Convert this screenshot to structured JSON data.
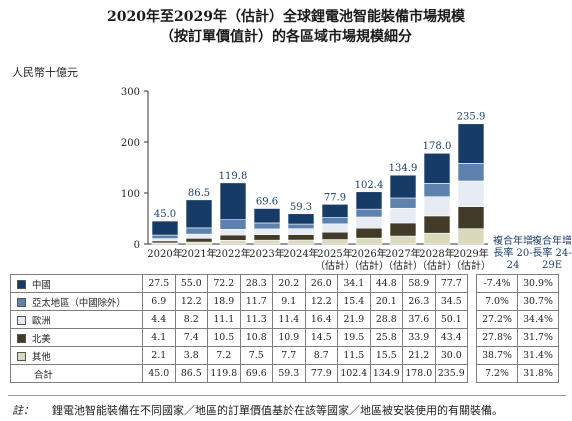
{
  "title_line1": "2020年至2029年（估計）全球鋰電池智能裝備市場規模",
  "title_line2": "（按訂單價值計）的各區域市場規模細分",
  "chart_data": {
    "type": "bar",
    "stacked": true,
    "ylabel": "人民幣十億元",
    "ylim": [
      0,
      300
    ],
    "yticks": [
      0,
      100,
      200,
      300
    ],
    "categories": [
      "2020年",
      "2021年",
      "2022年",
      "2023年",
      "2024年",
      "2025年\n（估計）",
      "2026年\n（估計）",
      "2027年\n（估計）",
      "2028年\n（估計）",
      "2029年\n（估計）"
    ],
    "series": [
      {
        "name": "中國",
        "color": "#163b66",
        "values": [
          27.5,
          55.0,
          72.2,
          28.3,
          20.2,
          26.0,
          34.1,
          44.8,
          58.9,
          77.7
        ],
        "cagr_2024": "-7.4%",
        "cagr_2429": "30.9%"
      },
      {
        "name": "亞太地區（中國除外）",
        "color": "#5c82ad",
        "values": [
          6.9,
          12.2,
          18.9,
          11.7,
          9.1,
          12.2,
          15.4,
          20.1,
          26.3,
          34.5
        ],
        "cagr_2024": "7.0%",
        "cagr_2429": "30.7%"
      },
      {
        "name": "歐洲",
        "color": "#e6ebf4",
        "values": [
          4.4,
          8.2,
          11.1,
          11.3,
          11.4,
          16.4,
          21.9,
          28.8,
          37.6,
          50.1
        ],
        "cagr_2024": "27.2%",
        "cagr_2429": "34.4%"
      },
      {
        "name": "北美",
        "color": "#413b27",
        "values": [
          4.1,
          7.4,
          10.5,
          10.8,
          10.9,
          14.5,
          19.5,
          25.8,
          33.9,
          43.4
        ],
        "cagr_2024": "27.8%",
        "cagr_2429": "31.7%"
      },
      {
        "name": "其他",
        "color": "#dbd9bb",
        "values": [
          2.1,
          3.8,
          7.2,
          7.5,
          7.7,
          8.7,
          11.5,
          15.5,
          21.2,
          30.0
        ],
        "cagr_2024": "38.7%",
        "cagr_2429": "31.4%"
      }
    ],
    "totals": {
      "name": "合計",
      "values": [
        45.0,
        86.5,
        119.8,
        69.6,
        59.3,
        77.9,
        102.4,
        134.9,
        178.0,
        235.9
      ],
      "cagr_2024": "7.2%",
      "cagr_2429": "31.8%"
    },
    "cagr_headers": [
      "複合年增長率 20-24",
      "複合年增長率 24-29E"
    ],
    "grid": false
  },
  "note": {
    "label": "註：",
    "text": "鋰電池智能裝備在不同國家／地區的訂單價值基於在該等國家／地區被安裝使用的有關裝備。"
  }
}
